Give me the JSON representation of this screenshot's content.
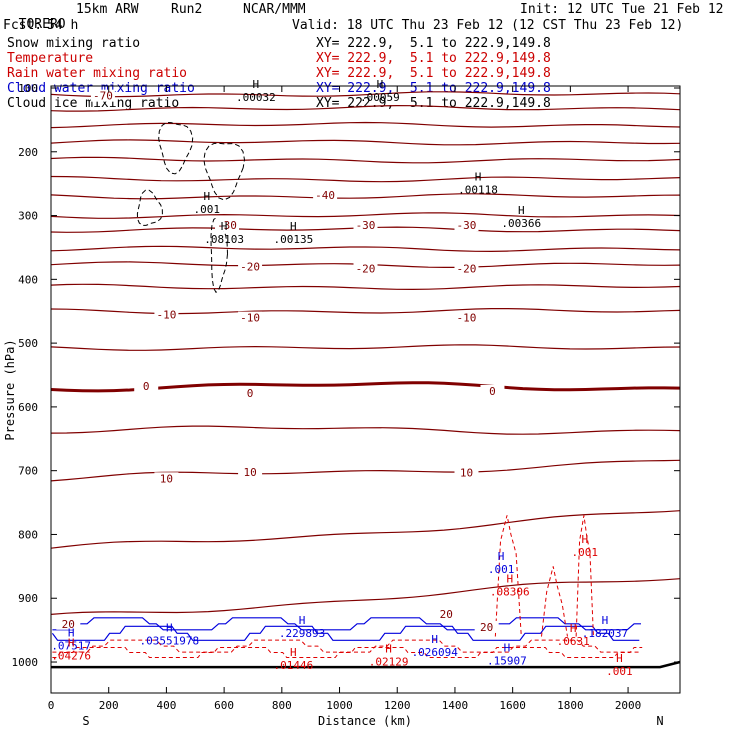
{
  "header": {
    "model": "TORERO",
    "resolution": "15km ARW",
    "run": "Run2",
    "center": "NCAR/MMM",
    "init": "Init: 12 UTC Tue 21 Feb 12",
    "fcst_label": "Fcst:",
    "fcst_hours": "54 h",
    "valid": "Valid: 18 UTC Thu 23 Feb 12 (12 CST Thu 23 Feb 12)"
  },
  "legend": [
    {
      "name": "Snow mixing ratio",
      "xy": "XY= 222.9,  5.1 to 222.9,149.8",
      "color": "#000000"
    },
    {
      "name": "Temperature",
      "xy": "XY= 222.9,  5.1 to 222.9,149.8",
      "color": "#cc0000"
    },
    {
      "name": "Rain water mixing ratio",
      "xy": "XY= 222.9,  5.1 to 222.9,149.8",
      "color": "#cc0000"
    },
    {
      "name": "Cloud water mixing ratio",
      "xy": "XY= 222.9,  5.1 to 222.9,149.8",
      "color": "#0000cc"
    },
    {
      "name": "Cloud ice mixing ratio",
      "xy": "XY= 222.9,  5.1 to 222.9,149.8",
      "color": "#000000"
    }
  ],
  "colors": {
    "temperature": "#800000",
    "zero_isotherm": "#800000",
    "rain": "#e00000",
    "cloud_water": "#0000dd",
    "ice_snow": "#000000"
  },
  "chart_data": {
    "type": "line",
    "title": "Vertical cross section",
    "xlabel": "Distance (km)",
    "ylabel": "Pressure (hPa)",
    "xlim": [
      0,
      2180
    ],
    "ylim": [
      1048,
      80
    ],
    "x_ticks": [
      0,
      200,
      400,
      600,
      800,
      1000,
      1200,
      1400,
      1600,
      1800,
      2000
    ],
    "y_ticks": [
      100,
      200,
      300,
      400,
      500,
      600,
      700,
      800,
      900,
      1000
    ],
    "x_end_left": "S",
    "x_end_right": "N",
    "temperature_contours": [
      {
        "level": -70,
        "p_left": 110
      },
      {
        "level": -65,
        "p_left": 132
      },
      {
        "level": -60,
        "p_left": 158
      },
      {
        "level": -55,
        "p_left": 185
      },
      {
        "level": -50,
        "p_left": 213
      },
      {
        "level": -45,
        "p_left": 243
      },
      {
        "level": -40,
        "p_left": 270
      },
      {
        "level": -35,
        "p_left": 300
      },
      {
        "level": -30,
        "p_left": 322
      },
      {
        "level": -25,
        "p_left": 352
      },
      {
        "level": -20,
        "p_left": 377
      },
      {
        "level": -15,
        "p_left": 412
      },
      {
        "level": -10,
        "p_left": 450
      },
      {
        "level": -5,
        "p_left": 507
      },
      {
        "level": 0,
        "p_left": 568
      },
      {
        "level": 5,
        "p_left": 636
      },
      {
        "level": 10,
        "p_left": 715
      },
      {
        "level": 15,
        "p_left": 825
      },
      {
        "level": 20,
        "p_left": 930
      }
    ],
    "temperature_labels": [
      {
        "text": "-70",
        "x": 180,
        "p": 112
      },
      {
        "text": "-40",
        "x": 950,
        "p": 268
      },
      {
        "text": "-30",
        "x": 610,
        "p": 315
      },
      {
        "text": "-30",
        "x": 1090,
        "p": 315
      },
      {
        "text": "-30",
        "x": 1440,
        "p": 315
      },
      {
        "text": "-20",
        "x": 690,
        "p": 380
      },
      {
        "text": "-20",
        "x": 1090,
        "p": 383
      },
      {
        "text": "-20",
        "x": 1440,
        "p": 383
      },
      {
        "text": "-10",
        "x": 400,
        "p": 455
      },
      {
        "text": "-10",
        "x": 690,
        "p": 460
      },
      {
        "text": "-10",
        "x": 1440,
        "p": 460
      },
      {
        "text": "0",
        "x": 330,
        "p": 567
      },
      {
        "text": "0",
        "x": 690,
        "p": 578
      },
      {
        "text": "0",
        "x": 1530,
        "p": 575
      },
      {
        "text": "10",
        "x": 400,
        "p": 712
      },
      {
        "text": "10",
        "x": 690,
        "p": 702
      },
      {
        "text": "10",
        "x": 1440,
        "p": 703
      },
      {
        "text": "20",
        "x": 60,
        "p": 940
      },
      {
        "text": "20",
        "x": 1370,
        "p": 925
      },
      {
        "text": "20",
        "x": 1510,
        "p": 945
      }
    ],
    "maxima_labels": [
      {
        "text": ".00032",
        "x": 710,
        "p": 105,
        "color": "black"
      },
      {
        "text": ".00059",
        "x": 1140,
        "p": 105,
        "color": "black"
      },
      {
        "text": ".00118",
        "x": 1480,
        "p": 250,
        "color": "black"
      },
      {
        "text": ".00366",
        "x": 1630,
        "p": 302,
        "color": "black"
      },
      {
        "text": ".001",
        "x": 540,
        "p": 280,
        "color": "black"
      },
      {
        "text": ".08103",
        "x": 600,
        "p": 327,
        "color": "black"
      },
      {
        "text": ".00135",
        "x": 840,
        "p": 327,
        "color": "black"
      },
      {
        "text": ".001",
        "x": 1560,
        "p": 845,
        "color": "blue"
      },
      {
        "text": ".001",
        "x": 1850,
        "p": 818,
        "color": "red"
      },
      {
        "text": ".08306",
        "x": 1590,
        "p": 880,
        "color": "red"
      },
      {
        "text": ".07517",
        "x": 70,
        "p": 965,
        "color": "blue"
      },
      {
        "text": ".04276",
        "x": 70,
        "p": 980,
        "color": "red"
      },
      {
        "text": ".03551978",
        "x": 410,
        "p": 957,
        "color": "blue"
      },
      {
        "text": ".229893",
        "x": 870,
        "p": 945,
        "color": "blue"
      },
      {
        "text": ".01446",
        "x": 840,
        "p": 995,
        "color": "red"
      },
      {
        "text": ".02129",
        "x": 1170,
        "p": 990,
        "color": "red"
      },
      {
        "text": ".026094",
        "x": 1330,
        "p": 975,
        "color": "blue"
      },
      {
        "text": ".15907",
        "x": 1580,
        "p": 988,
        "color": "blue"
      },
      {
        "text": ".182037",
        "x": 1920,
        "p": 945,
        "color": "blue"
      },
      {
        "text": ".0631",
        "x": 1810,
        "p": 958,
        "color": "red"
      },
      {
        "text": ".001",
        "x": 1970,
        "p": 1005,
        "color": "red"
      }
    ]
  }
}
